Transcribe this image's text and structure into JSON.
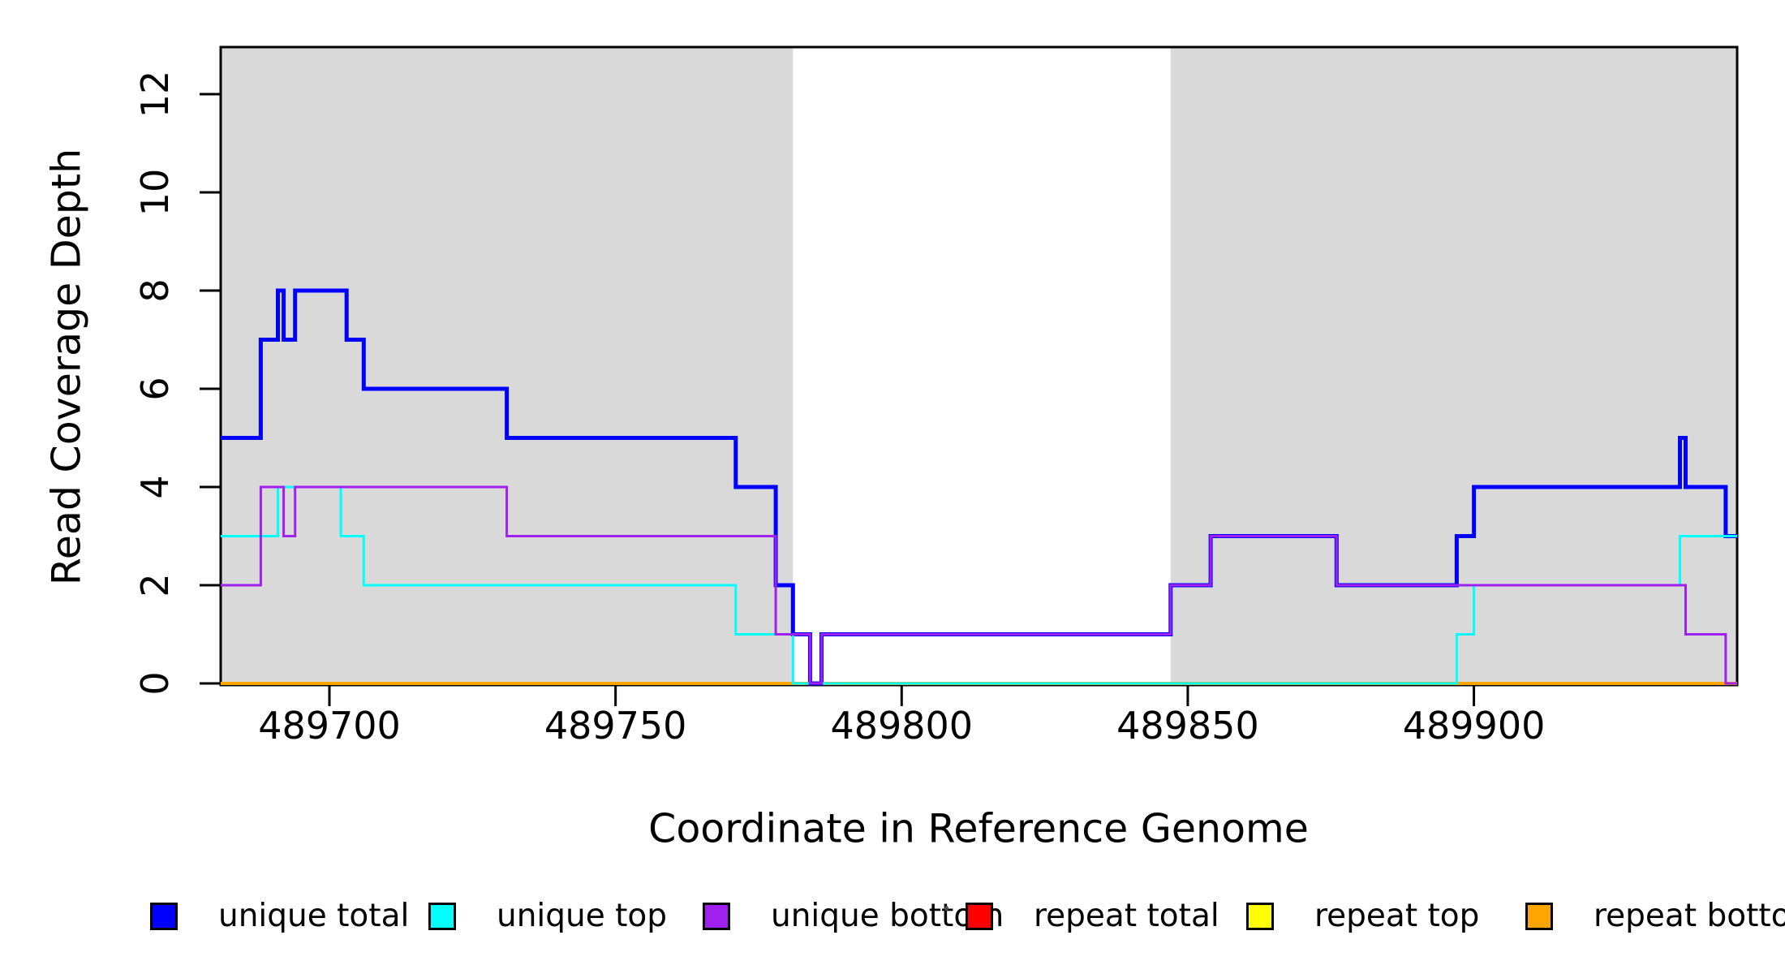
{
  "chart_data": {
    "type": "line",
    "subtype": "step-coverage-plot",
    "title": "",
    "xlabel": "Coordinate in Reference Genome",
    "ylabel": "Read Coverage Depth",
    "xlim": [
      489681,
      489946
    ],
    "ylim": [
      0,
      12.9
    ],
    "x_ticks": [
      489700,
      489750,
      489800,
      489850,
      489900
    ],
    "y_ticks": [
      0,
      2,
      4,
      6,
      8,
      10,
      12
    ],
    "grid": false,
    "plot_bg": "#FFFFFF",
    "shade_color": "#D9D9D9",
    "shaded_regions": [
      {
        "x0": 489681,
        "x1": 489781
      },
      {
        "x0": 489847,
        "x1": 489946
      }
    ],
    "x_end": 489946,
    "series": [
      {
        "name": "repeat total",
        "color": "#FF0000",
        "width": 4,
        "steps": [
          [
            489681,
            0
          ]
        ]
      },
      {
        "name": "repeat top",
        "color": "#FFFF00",
        "width": 4,
        "steps": [
          [
            489681,
            0
          ]
        ]
      },
      {
        "name": "repeat bottom",
        "color": "#FFA500",
        "width": 4,
        "steps": [
          [
            489681,
            0
          ]
        ]
      },
      {
        "name": "unique total",
        "color": "#0000FF",
        "width": 5,
        "steps": [
          [
            489681,
            5
          ],
          [
            489688,
            7
          ],
          [
            489691,
            8
          ],
          [
            489692,
            7
          ],
          [
            489694,
            8
          ],
          [
            489703,
            7
          ],
          [
            489706,
            6
          ],
          [
            489731,
            5
          ],
          [
            489771,
            4
          ],
          [
            489778,
            2
          ],
          [
            489781,
            1
          ],
          [
            489784,
            0
          ],
          [
            489786,
            1
          ],
          [
            489847,
            2
          ],
          [
            489854,
            3
          ],
          [
            489876,
            2
          ],
          [
            489897,
            3
          ],
          [
            489900,
            4
          ],
          [
            489936,
            5
          ],
          [
            489937,
            4
          ],
          [
            489944,
            3
          ]
        ]
      },
      {
        "name": "unique top",
        "color": "#00FFFF",
        "width": 3,
        "steps": [
          [
            489681,
            3
          ],
          [
            489691,
            4
          ],
          [
            489702,
            3
          ],
          [
            489706,
            2
          ],
          [
            489771,
            1
          ],
          [
            489781,
            0
          ],
          [
            489897,
            1
          ],
          [
            489900,
            2
          ],
          [
            489936,
            3
          ]
        ]
      },
      {
        "name": "unique bottom",
        "color": "#A020F0",
        "width": 3,
        "steps": [
          [
            489681,
            2
          ],
          [
            489688,
            4
          ],
          [
            489692,
            3
          ],
          [
            489694,
            4
          ],
          [
            489731,
            3
          ],
          [
            489778,
            1
          ],
          [
            489784,
            0
          ],
          [
            489786,
            1
          ],
          [
            489847,
            2
          ],
          [
            489854,
            3
          ],
          [
            489876,
            2
          ],
          [
            489937,
            1
          ],
          [
            489944,
            0
          ]
        ]
      }
    ],
    "legend": {
      "position": "bottom",
      "items": [
        {
          "label": "unique total",
          "color": "#0000FF"
        },
        {
          "label": "unique top",
          "color": "#00FFFF"
        },
        {
          "label": "unique bottom",
          "color": "#A020F0"
        },
        {
          "label": "repeat total",
          "color": "#FF0000"
        },
        {
          "label": "repeat top",
          "color": "#FFFF00"
        },
        {
          "label": "repeat bottom",
          "color": "#FFA500"
        }
      ]
    }
  }
}
